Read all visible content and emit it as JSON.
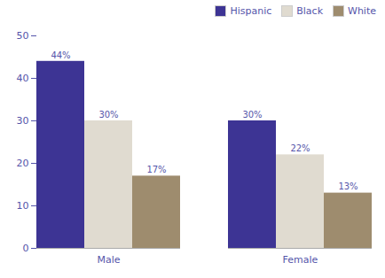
{
  "chart_data": {
    "type": "bar",
    "categories": [
      "Male",
      "Female"
    ],
    "series": [
      {
        "name": "Hispanic",
        "values": [
          44,
          30
        ],
        "value_labels": [
          "44%",
          "30%"
        ],
        "color": "#3D3494"
      },
      {
        "name": "Black",
        "values": [
          30,
          22
        ],
        "value_labels": [
          "30%",
          "22%"
        ],
        "color": "#E0DBD0"
      },
      {
        "name": "White",
        "values": [
          17,
          13
        ],
        "value_labels": [
          "17%",
          "13%"
        ],
        "color": "#9E8C6E"
      }
    ],
    "ylim": [
      0,
      50
    ],
    "yticks": [
      0,
      10,
      20,
      30,
      40,
      50
    ],
    "grid": false,
    "legend": "upper right",
    "data_labels": true
  }
}
